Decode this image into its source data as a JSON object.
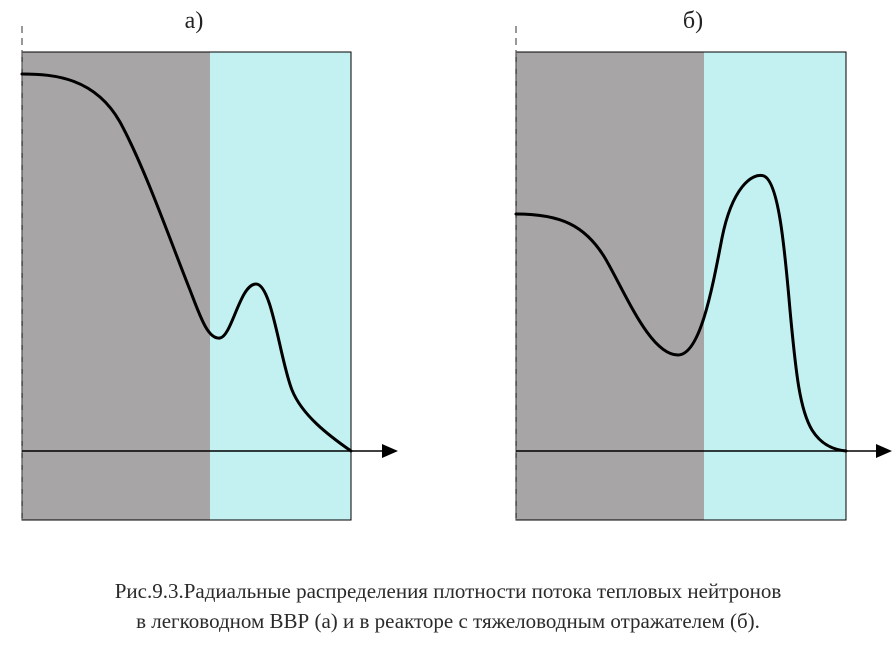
{
  "panels": [
    {
      "label": "а)"
    },
    {
      "label": "б)"
    }
  ],
  "colors": {
    "core": "#a7a5a6",
    "reflector": "#c3f1f1",
    "curve": "#000000",
    "axis": "#000000",
    "dashed_axis": "#555555",
    "border": "#000000"
  },
  "caption": {
    "line1": "Рис.9.3.Радиальные распределения плотности потока тепловых нейтронов",
    "line2": "в легководном ВВР (а) и в реакторе с тяжеловодным отражателем (б)."
  }
}
